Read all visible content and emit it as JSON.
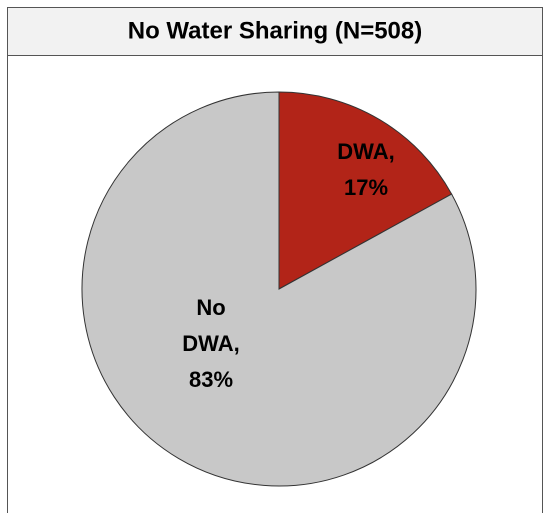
{
  "chart_data": {
    "type": "pie",
    "title": "No Water Sharing (N=508)",
    "values": [
      17,
      83
    ],
    "value_labels": [
      "DWA, 17%",
      "No DWA, 83%"
    ],
    "colors": [
      "#b22418",
      "#c8c8c8"
    ]
  }
}
